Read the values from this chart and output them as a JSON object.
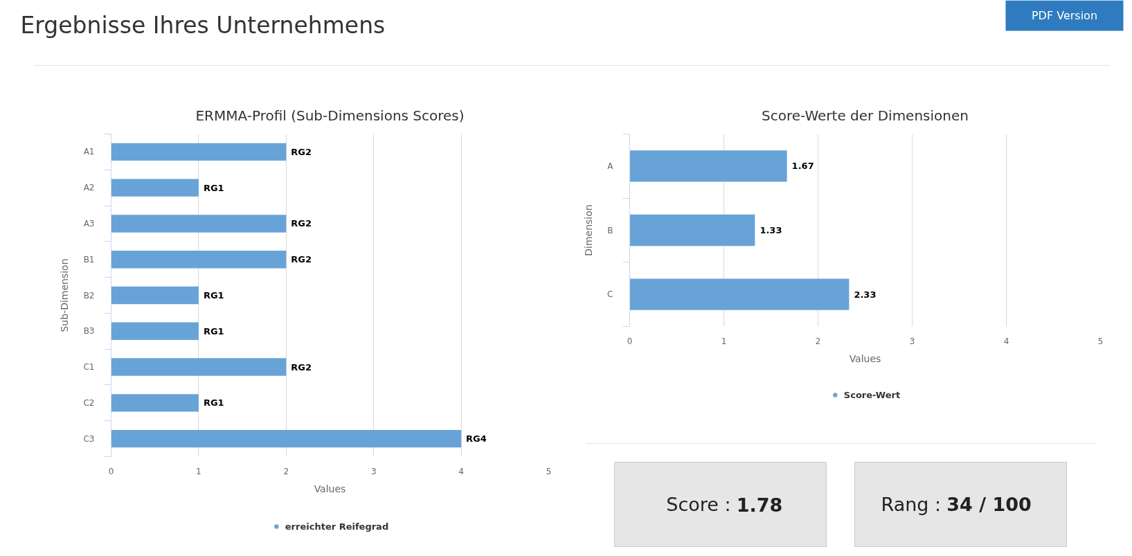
{
  "chart_data": [
    {
      "type": "other",
      "title": "Ergebnisse Ihres Unternehmens",
      "annotations": [
        "PDF Version"
      ]
    },
    {
      "type": "bar",
      "orientation": "horizontal",
      "title": "ERMMA-Profil (Sub-Dimensions Scores)",
      "xlabel": "Values",
      "ylabel": "Sub-Dimension",
      "categories": [
        "A1",
        "A2",
        "A3",
        "B1",
        "B2",
        "B3",
        "C1",
        "C2",
        "C3"
      ],
      "series": [
        {
          "name": "erreichter Reifegrad",
          "color": "#68a3d8",
          "values": [
            2,
            1,
            2,
            2,
            1,
            1,
            2,
            1,
            4
          ],
          "value_labels": [
            "RG2",
            "RG1",
            "RG2",
            "RG2",
            "RG1",
            "RG1",
            "RG2",
            "RG1",
            "RG4"
          ]
        }
      ],
      "xlim": [
        0,
        5
      ],
      "xticks": [
        0,
        1,
        2,
        3,
        4,
        5
      ],
      "grid": "x",
      "legend": "bottom"
    },
    {
      "type": "bar",
      "orientation": "horizontal",
      "title": "Score-Werte der Dimensionen",
      "xlabel": "Values",
      "ylabel": "Dimension",
      "categories": [
        "A",
        "B",
        "C"
      ],
      "series": [
        {
          "name": "Score-Wert",
          "color": "#68a3d8",
          "values": [
            1.67,
            1.33,
            2.33
          ]
        }
      ],
      "data_labels": true,
      "xlim": [
        0,
        5
      ],
      "xticks": [
        0,
        1,
        2,
        3,
        4,
        5
      ],
      "grid": "x",
      "legend": "bottom"
    },
    {
      "type": "other",
      "annotations": [
        "Score : 1.78",
        "Rang : 34 / 100"
      ]
    }
  ]
}
